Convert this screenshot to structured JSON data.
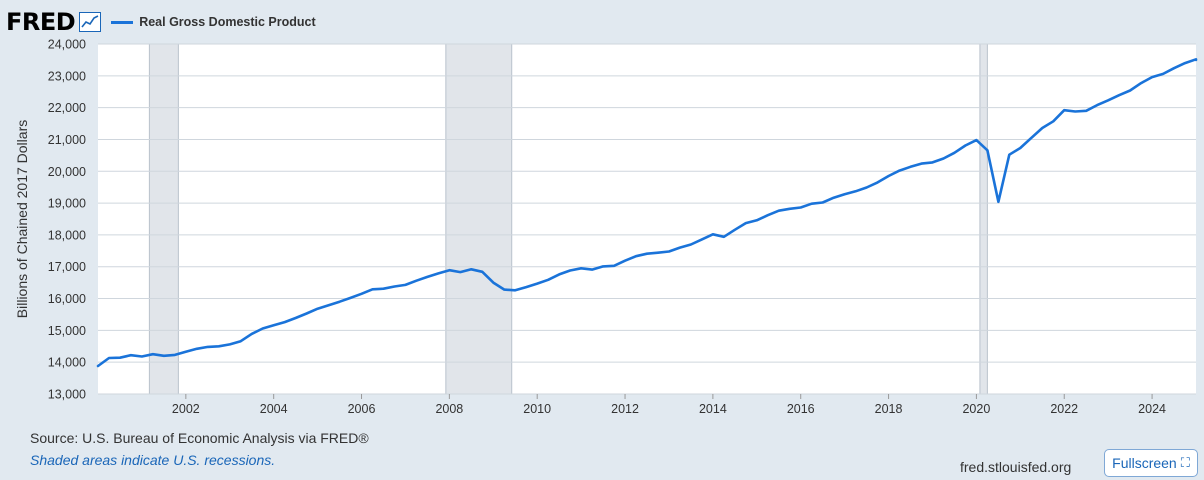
{
  "logo": {
    "text": "FRED"
  },
  "legend": {
    "label": "Real Gross Domestic Product"
  },
  "footer": {
    "source": "Source: U.S. Bureau of Economic Analysis via FRED®",
    "shaded_note": "Shaded areas indicate U.S. recessions.",
    "site": "fred.stlouisfed.org",
    "fullscreen_label": "Fullscreen"
  },
  "colors": {
    "line": "#1a73d9",
    "recession": "#e1e5ea",
    "frame": "#e1e9f0",
    "grid": "#cfd6dd"
  },
  "chart_data": {
    "type": "line",
    "title": "",
    "xlabel": "",
    "ylabel": "Billions of Chained 2017 Dollars",
    "series": [
      {
        "name": "Real Gross Domestic Product",
        "color": "#1a73d9"
      }
    ],
    "xlim": [
      2000.0,
      2025.0
    ],
    "ylim": [
      13000,
      24000
    ],
    "y_ticks": [
      13000,
      14000,
      15000,
      16000,
      17000,
      18000,
      19000,
      20000,
      21000,
      22000,
      23000,
      24000
    ],
    "y_tick_labels": [
      "13,000",
      "14,000",
      "15,000",
      "16,000",
      "17,000",
      "18,000",
      "19,000",
      "20,000",
      "21,000",
      "22,000",
      "23,000",
      "24,000"
    ],
    "x_ticks": [
      2002,
      2004,
      2006,
      2008,
      2010,
      2012,
      2014,
      2016,
      2018,
      2020,
      2022,
      2024
    ],
    "x_tick_labels": [
      "2002",
      "2004",
      "2006",
      "2008",
      "2010",
      "2012",
      "2014",
      "2016",
      "2018",
      "2020",
      "2022",
      "2024"
    ],
    "recessions": [
      [
        2001.17,
        2001.83
      ],
      [
        2007.92,
        2009.42
      ],
      [
        2020.08,
        2020.25
      ]
    ],
    "grid": true,
    "legend_position": "top-left",
    "points": [
      [
        2000.0,
        13880
      ],
      [
        2000.25,
        14130
      ],
      [
        2000.5,
        14140
      ],
      [
        2000.75,
        14220
      ],
      [
        2001.0,
        14180
      ],
      [
        2001.25,
        14250
      ],
      [
        2001.5,
        14200
      ],
      [
        2001.75,
        14230
      ],
      [
        2002.0,
        14330
      ],
      [
        2002.25,
        14420
      ],
      [
        2002.5,
        14480
      ],
      [
        2002.75,
        14500
      ],
      [
        2003.0,
        14560
      ],
      [
        2003.25,
        14660
      ],
      [
        2003.5,
        14890
      ],
      [
        2003.75,
        15060
      ],
      [
        2004.0,
        15160
      ],
      [
        2004.25,
        15260
      ],
      [
        2004.5,
        15390
      ],
      [
        2004.75,
        15530
      ],
      [
        2005.0,
        15680
      ],
      [
        2005.25,
        15790
      ],
      [
        2005.5,
        15900
      ],
      [
        2005.75,
        16020
      ],
      [
        2006.0,
        16150
      ],
      [
        2006.25,
        16290
      ],
      [
        2006.5,
        16310
      ],
      [
        2006.75,
        16380
      ],
      [
        2007.0,
        16430
      ],
      [
        2007.25,
        16560
      ],
      [
        2007.5,
        16680
      ],
      [
        2007.75,
        16790
      ],
      [
        2008.0,
        16890
      ],
      [
        2008.25,
        16830
      ],
      [
        2008.5,
        16920
      ],
      [
        2008.75,
        16840
      ],
      [
        2009.0,
        16500
      ],
      [
        2009.25,
        16280
      ],
      [
        2009.5,
        16260
      ],
      [
        2009.75,
        16360
      ],
      [
        2010.0,
        16470
      ],
      [
        2010.25,
        16590
      ],
      [
        2010.5,
        16760
      ],
      [
        2010.75,
        16880
      ],
      [
        2011.0,
        16950
      ],
      [
        2011.25,
        16910
      ],
      [
        2011.5,
        17010
      ],
      [
        2011.75,
        17030
      ],
      [
        2012.0,
        17190
      ],
      [
        2012.25,
        17330
      ],
      [
        2012.5,
        17410
      ],
      [
        2012.75,
        17440
      ],
      [
        2013.0,
        17480
      ],
      [
        2013.25,
        17600
      ],
      [
        2013.5,
        17700
      ],
      [
        2013.75,
        17860
      ],
      [
        2014.0,
        18020
      ],
      [
        2014.25,
        17940
      ],
      [
        2014.5,
        18160
      ],
      [
        2014.75,
        18370
      ],
      [
        2015.0,
        18460
      ],
      [
        2015.25,
        18620
      ],
      [
        2015.5,
        18760
      ],
      [
        2015.75,
        18820
      ],
      [
        2016.0,
        18860
      ],
      [
        2016.25,
        18980
      ],
      [
        2016.5,
        19020
      ],
      [
        2016.75,
        19170
      ],
      [
        2017.0,
        19280
      ],
      [
        2017.25,
        19370
      ],
      [
        2017.5,
        19490
      ],
      [
        2017.75,
        19650
      ],
      [
        2018.0,
        19850
      ],
      [
        2018.25,
        20020
      ],
      [
        2018.5,
        20140
      ],
      [
        2018.75,
        20240
      ],
      [
        2019.0,
        20280
      ],
      [
        2019.25,
        20400
      ],
      [
        2019.5,
        20580
      ],
      [
        2019.75,
        20810
      ],
      [
        2020.0,
        20980
      ],
      [
        2020.25,
        20660
      ],
      [
        2020.5,
        19040
      ],
      [
        2020.75,
        20520
      ],
      [
        2021.0,
        20730
      ],
      [
        2021.25,
        21050
      ],
      [
        2021.5,
        21360
      ],
      [
        2021.75,
        21570
      ],
      [
        2022.0,
        21920
      ],
      [
        2022.25,
        21880
      ],
      [
        2022.5,
        21900
      ],
      [
        2022.75,
        22080
      ],
      [
        2023.0,
        22230
      ],
      [
        2023.25,
        22390
      ],
      [
        2023.5,
        22540
      ],
      [
        2023.75,
        22770
      ],
      [
        2024.0,
        22960
      ],
      [
        2024.25,
        23060
      ],
      [
        2024.5,
        23240
      ],
      [
        2024.75,
        23400
      ],
      [
        2025.0,
        23520
      ],
      [
        2025.25,
        23500
      ]
    ]
  }
}
